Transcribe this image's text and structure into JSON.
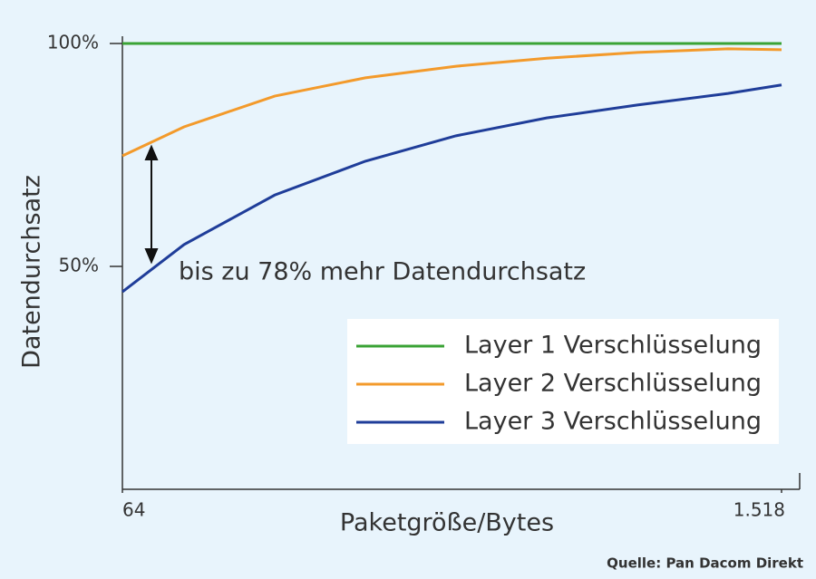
{
  "chart_data": {
    "type": "line",
    "y_label": "Datendurchsatz",
    "x_label": "Paketgröße/Bytes",
    "annotation": "bis zu 78% mehr Datendurchsatz",
    "source": "Quelle: Pan Dacom Direkt",
    "x": [
      64,
      200,
      400,
      600,
      800,
      1000,
      1200,
      1400,
      1518
    ],
    "series": [
      {
        "name": "Layer 1 Verschlüsselung",
        "color": "#3aa335",
        "values": [
          100,
          100,
          100,
          100,
          100,
          100,
          100,
          100,
          100
        ]
      },
      {
        "name": "Layer 2 Verschlüsselung",
        "color": "#f39a2b",
        "values": [
          74.8,
          81.3,
          88.2,
          92.3,
          94.9,
          96.7,
          98,
          98.8,
          98.6
        ]
      },
      {
        "name": "Layer 3 Verschlüsselung",
        "color": "#1f3d99",
        "values": [
          44.3,
          54.9,
          66,
          73.6,
          79.3,
          83.3,
          86.2,
          88.8,
          90.7
        ]
      }
    ],
    "xlim": [
      64,
      1518
    ],
    "xticks": [
      64,
      {
        "value": 1518,
        "label": "1.518"
      }
    ],
    "ylim": [
      0,
      100
    ],
    "yticks": [
      {
        "value": 50,
        "label": "50%"
      },
      {
        "value": 100,
        "label": "100%"
      }
    ],
    "legend": "lower right"
  }
}
